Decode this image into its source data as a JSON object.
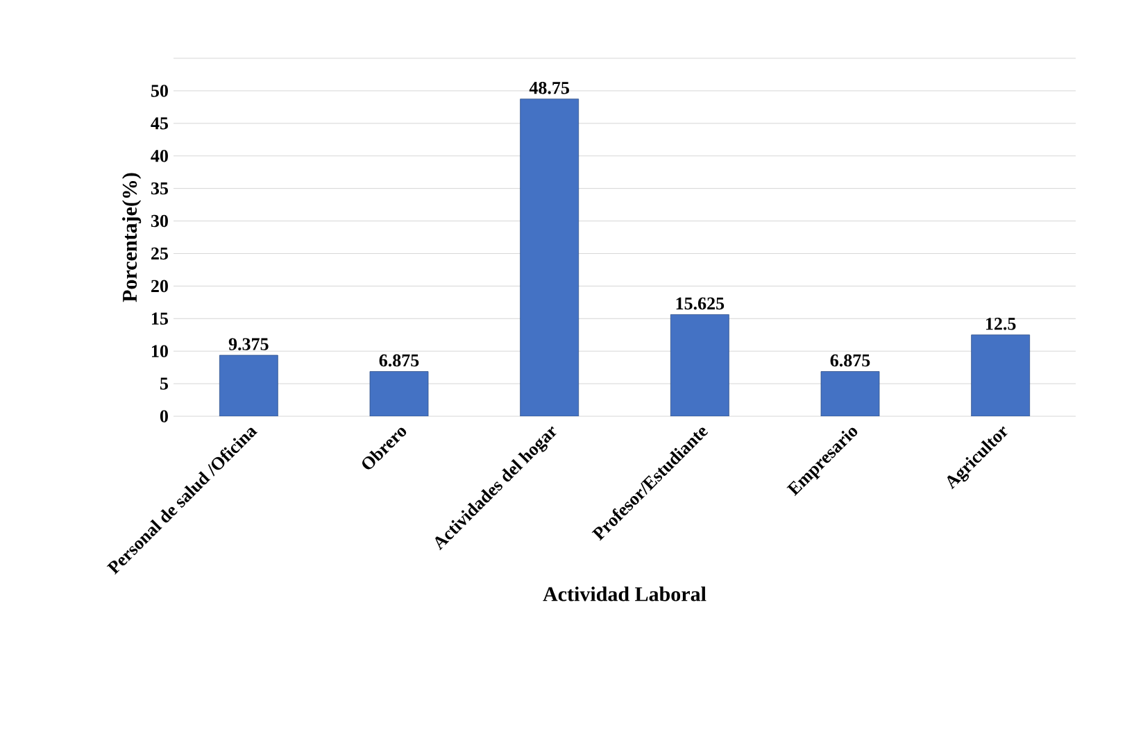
{
  "chart_data": {
    "type": "bar",
    "xlabel": "Actividad Laboral",
    "ylabel": "Porcentaje(%)",
    "categories": [
      "Personal de salud /Oficina",
      "Obrero",
      "Actividades del hogar",
      "Profesor/Estudiante",
      "Empresario",
      "Agricultor"
    ],
    "values": [
      9.375,
      6.875,
      48.75,
      15.625,
      6.875,
      12.5
    ],
    "color": "#4472c4",
    "ylim": [
      0,
      55
    ],
    "yticks": [
      0,
      5,
      10,
      15,
      20,
      25,
      30,
      35,
      40,
      45,
      50,
      {
        "value": 55,
        "label": null
      }
    ],
    "grid": "y",
    "data_labels": true
  }
}
